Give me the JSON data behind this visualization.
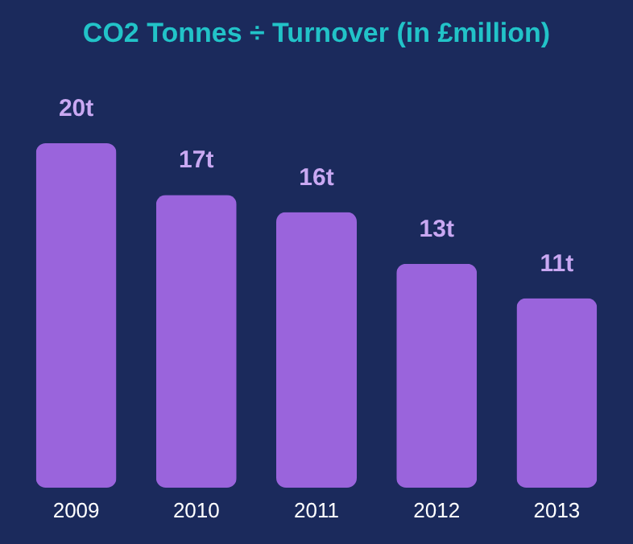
{
  "chart_data": {
    "type": "bar",
    "title": "CO2 Tonnes ÷ Turnover (in £million)",
    "categories": [
      "2009",
      "2010",
      "2011",
      "2012",
      "2013"
    ],
    "values": [
      20,
      17,
      16,
      13,
      11
    ],
    "value_labels": [
      "20t",
      "17t",
      "16t",
      "13t",
      "11t"
    ],
    "color": "#9a64dc"
  }
}
